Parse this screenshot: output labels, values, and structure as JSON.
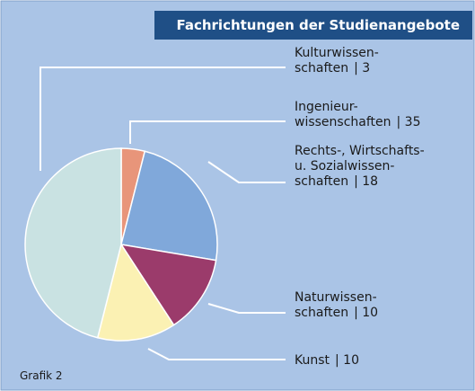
{
  "chart_data": {
    "type": "pie",
    "title": "Fachrichtungen der Studienangebote",
    "footnote": "Grafik 2",
    "categories": [
      [
        "Kulturwissen-",
        "schaften"
      ],
      [
        "Rechts-, Wirtschafts-",
        "u. Sozialwissen-",
        "schaften"
      ],
      [
        "Naturwissen-",
        "schaften"
      ],
      [
        "Kunst"
      ],
      [
        "Ingenieur-",
        "wissenschaften"
      ]
    ],
    "values": [
      3,
      18,
      10,
      10,
      35
    ],
    "value_labels": [
      "| 3",
      "| 18",
      "| 10",
      "| 10",
      "| 35"
    ],
    "colors": [
      "#e8957a",
      "#80a8da",
      "#9b3b6b",
      "#fbf1b3",
      "#c9e2e2"
    ]
  }
}
